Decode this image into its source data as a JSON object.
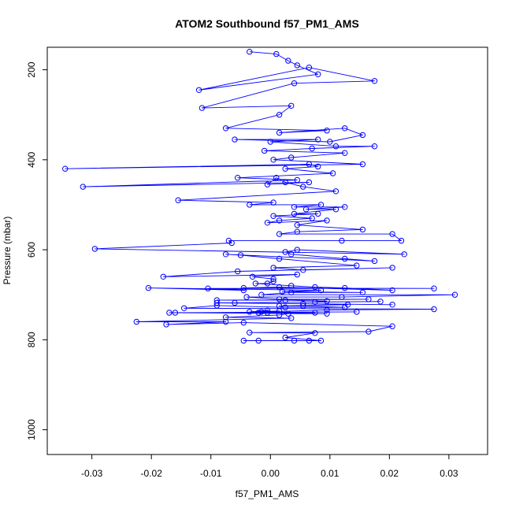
{
  "chart_data": {
    "type": "scatter",
    "title": "ATOM2 Southbound f57_PM1_AMS",
    "xlabel": "f57_PM1_AMS",
    "ylabel": "Pressure (mbar)",
    "xlim": [
      -0.0375,
      0.0365
    ],
    "ylim": [
      1055,
      150
    ],
    "y_reversed": true,
    "grid": false,
    "x_ticks": [
      -0.03,
      -0.02,
      -0.01,
      0.0,
      0.01,
      0.02,
      0.03
    ],
    "x_tick_labels": [
      "-0.03",
      "-0.02",
      "-0.01",
      "0.00",
      "0.01",
      "0.02",
      "0.03"
    ],
    "y_ticks": [
      200,
      400,
      600,
      800,
      1000
    ],
    "y_tick_labels": [
      "200",
      "400",
      "600",
      "800",
      "1000"
    ],
    "series": [
      {
        "color": "#0000ff",
        "marker": "open-circle",
        "connect_points": true,
        "x": [
          -0.0035,
          0.001,
          0.003,
          0.0045,
          0.008,
          -0.012,
          0.0065,
          0.0175,
          0.004,
          -0.0115,
          0.0035,
          0.0015,
          -0.0075,
          0.0095,
          0.0015,
          0.0125,
          0.0155,
          0.01,
          -0.006,
          0.008,
          0.0,
          0.011,
          0.0175,
          0.007,
          -0.001,
          0.0125,
          0.0035,
          0.0005,
          0.0155,
          -0.0345,
          0.0065,
          0.008,
          0.0025,
          0.0105,
          -0.0055,
          0.0045,
          -0.0315,
          0.0065,
          -0.0005,
          0.001,
          0.0025,
          0.0055,
          0.011,
          -0.0155,
          0.0005,
          -0.0035,
          0.0085,
          0.004,
          0.0125,
          0.006,
          0.011,
          0.004,
          0.008,
          0.0005,
          0.007,
          0.0015,
          -0.0005,
          0.0095,
          0.0045,
          0.0155,
          0.0045,
          0.0015,
          0.0205,
          0.022,
          0.012,
          -0.007,
          -0.0065,
          -0.0295,
          0.0225,
          0.0045,
          0.0025,
          0.0035,
          0.0125,
          0.0175,
          -0.0075,
          -0.005,
          0.0015,
          0.0145,
          0.0005,
          0.0055,
          0.0205,
          -0.0055,
          -0.018,
          0.0045,
          -0.003,
          0.0005,
          0.0005,
          -0.0005,
          -0.0025,
          0.0035,
          0.0075,
          0.0125,
          0.0205,
          0.0015,
          -0.0045,
          0.0275,
          -0.0105,
          -0.0045,
          -0.0205,
          0.0085,
          0.002,
          0.0155,
          0.0035,
          -0.0015,
          0.031,
          0.012,
          -0.004,
          0.0015,
          0.0165,
          -0.009,
          0.0025,
          0.0095,
          0.0075,
          0.0185,
          -0.006,
          -0.009,
          0.0205,
          0.0055,
          0.013,
          0.0015,
          0.0055,
          0.0125,
          0.0025,
          -0.009,
          -0.0145,
          0.0275,
          0.0095,
          -0.0015,
          -0.0005,
          -0.0035,
          0.0015,
          -0.002,
          0.0075,
          -0.0005,
          -0.017,
          0.0145,
          -0.016,
          0.0095,
          0.003,
          0.0015,
          -0.0075,
          0.0035,
          -0.0225,
          -0.0075,
          -0.0175,
          -0.0045,
          0.0205,
          0.0165,
          -0.0035,
          0.0075,
          0.0025,
          0.0085,
          -0.0045,
          -0.002,
          0.0065,
          0.004
        ],
        "y": [
          160,
          165,
          180,
          190,
          210,
          245,
          195,
          225,
          230,
          285,
          280,
          300,
          330,
          335,
          340,
          330,
          345,
          360,
          355,
          355,
          360,
          370,
          370,
          375,
          380,
          385,
          395,
          400,
          410,
          420,
          410,
          415,
          420,
          430,
          440,
          445,
          460,
          450,
          455,
          440,
          450,
          460,
          470,
          490,
          495,
          500,
          500,
          505,
          505,
          510,
          510,
          520,
          520,
          525,
          530,
          535,
          540,
          535,
          545,
          555,
          560,
          565,
          565,
          580,
          580,
          580,
          585,
          598,
          610,
          600,
          605,
          610,
          620,
          625,
          610,
          612,
          620,
          635,
          640,
          645,
          640,
          648,
          660,
          655,
          660,
          665,
          670,
          675,
          675,
          680,
          683,
          685,
          690,
          683,
          685,
          686,
          686,
          690,
          685,
          690,
          693,
          695,
          695,
          700,
          700,
          705,
          705,
          710,
          710,
          712,
          712,
          714,
          716,
          715,
          718,
          718,
          722,
          720,
          722,
          725,
          725,
          728,
          728,
          724,
          730,
          732,
          734,
          738,
          735,
          738,
          736,
          740,
          740,
          740,
          740,
          738,
          740,
          742,
          742,
          745,
          750,
          752,
          760,
          760,
          766,
          762,
          770,
          782,
          784,
          785,
          795,
          802,
          802,
          802,
          802,
          802
        ]
      }
    ]
  }
}
